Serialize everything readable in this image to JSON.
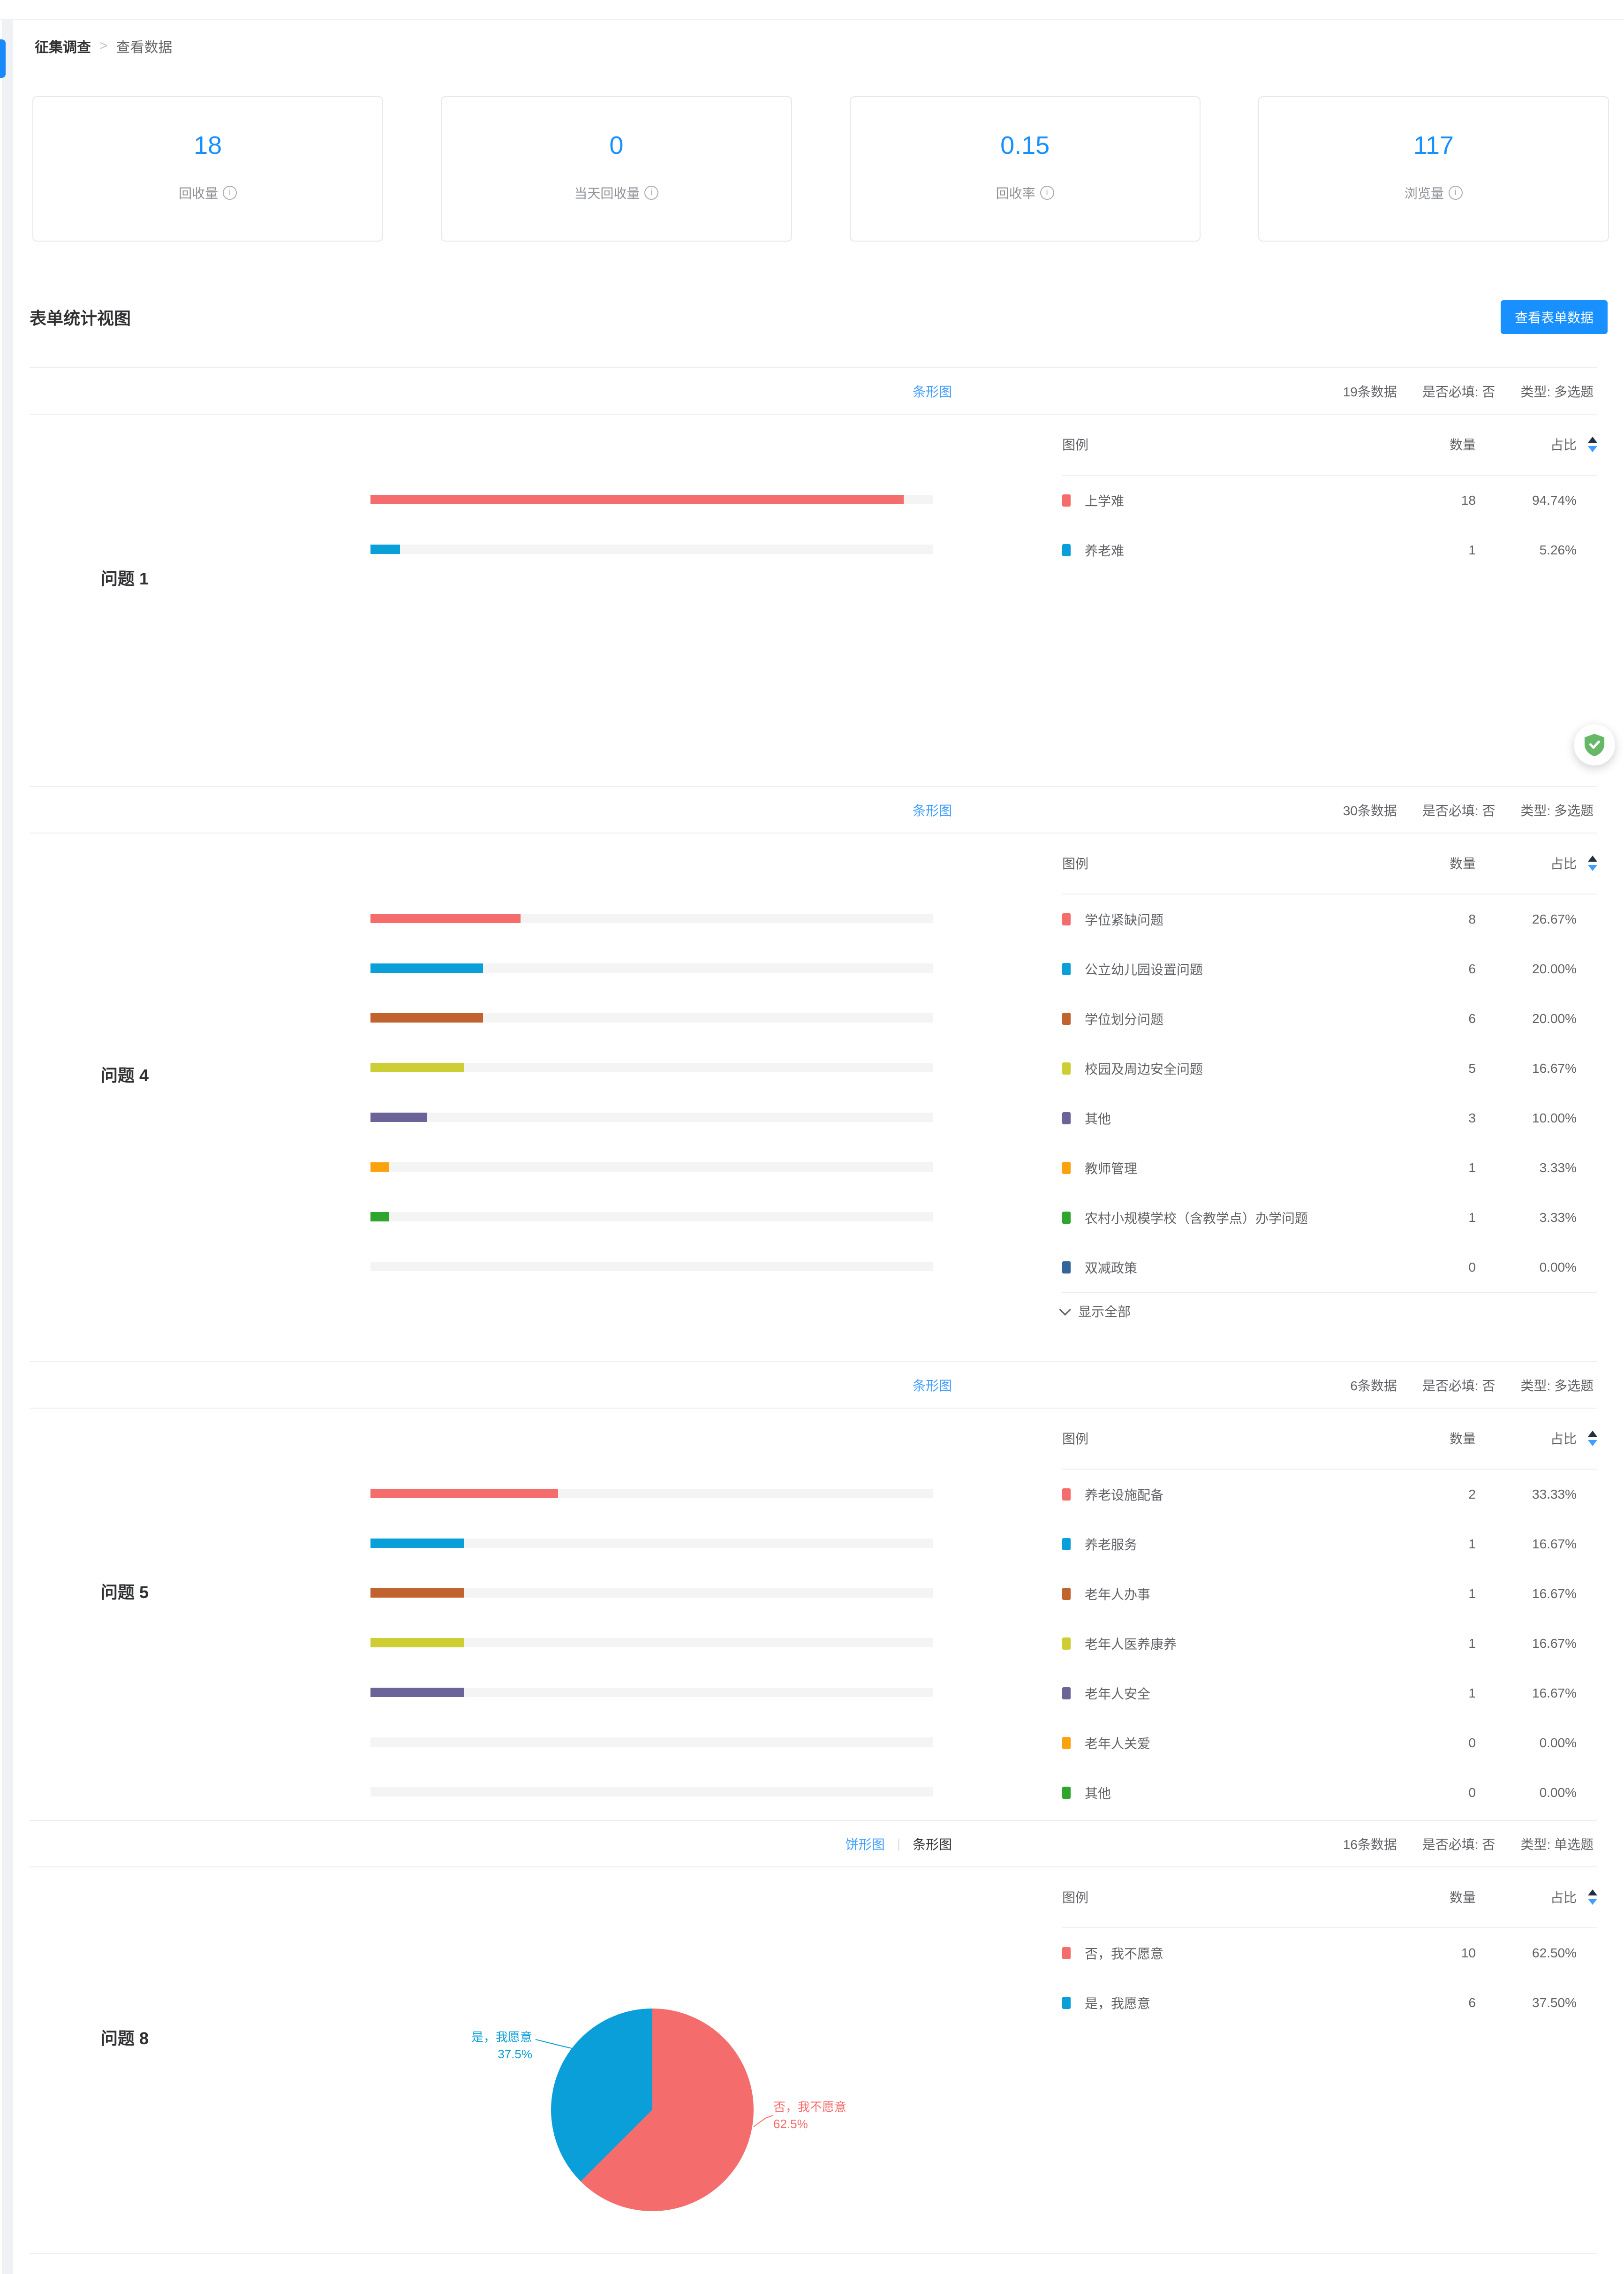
{
  "colors": {
    "primary": "#1890ff",
    "link": "#409eff",
    "divider": "#ebeef5",
    "track": "#f4f4f5"
  },
  "breadcrumb": {
    "root": "征集调查",
    "separator": ">",
    "current": "查看数据"
  },
  "stats": [
    {
      "value": "18",
      "label": "回收量"
    },
    {
      "value": "0",
      "label": "当天回收量"
    },
    {
      "value": "0.15",
      "label": "回收率"
    },
    {
      "value": "117",
      "label": "浏览量"
    }
  ],
  "form_section": {
    "title": "表单统计视图",
    "button": "查看表单数据"
  },
  "table": {
    "legend": "图例",
    "count": "数量",
    "ratio": "占比"
  },
  "questions": [
    {
      "title": "问题 1",
      "meta_count": "19条数据",
      "meta_required": "是否必填: 否",
      "meta_type": "类型: 多选题",
      "links": [
        {
          "label": "条形图",
          "active": true
        }
      ],
      "chart_type": "bar",
      "rows": [
        {
          "label": "上学难",
          "count": "18",
          "pct": "94.74%",
          "pct_num": 94.74,
          "color": "#f56c6c"
        },
        {
          "label": "养老难",
          "count": "1",
          "pct": "5.26%",
          "pct_num": 5.26,
          "color": "#0a9fd8"
        }
      ]
    },
    {
      "title": "问题 4",
      "meta_count": "30条数据",
      "meta_required": "是否必填: 否",
      "meta_type": "类型: 多选题",
      "links": [
        {
          "label": "条形图",
          "active": true
        }
      ],
      "chart_type": "bar",
      "show_all": "显示全部",
      "rows": [
        {
          "label": "学位紧缺问题",
          "count": "8",
          "pct": "26.67%",
          "pct_num": 26.67,
          "color": "#f56c6c"
        },
        {
          "label": "公立幼儿园设置问题",
          "count": "6",
          "pct": "20.00%",
          "pct_num": 20.0,
          "color": "#0a9fd8"
        },
        {
          "label": "学位划分问题",
          "count": "6",
          "pct": "20.00%",
          "pct_num": 20.0,
          "color": "#c1632f"
        },
        {
          "label": "校园及周边安全问题",
          "count": "5",
          "pct": "16.67%",
          "pct_num": 16.67,
          "color": "#ccce33"
        },
        {
          "label": "其他",
          "count": "3",
          "pct": "10.00%",
          "pct_num": 10.0,
          "color": "#6a6499"
        },
        {
          "label": "教师管理",
          "count": "1",
          "pct": "3.33%",
          "pct_num": 3.33,
          "color": "#fca20c"
        },
        {
          "label": "农村小规模学校（含教学点）办学问题",
          "count": "1",
          "pct": "3.33%",
          "pct_num": 3.33,
          "color": "#2ea52c"
        },
        {
          "label": "双减政策",
          "count": "0",
          "pct": "0.00%",
          "pct_num": 0,
          "color": "#32669b"
        }
      ]
    },
    {
      "title": "问题 5",
      "meta_count": "6条数据",
      "meta_required": "是否必填: 否",
      "meta_type": "类型: 多选题",
      "links": [
        {
          "label": "条形图",
          "active": true
        }
      ],
      "chart_type": "bar",
      "rows": [
        {
          "label": "养老设施配备",
          "count": "2",
          "pct": "33.33%",
          "pct_num": 33.33,
          "color": "#f56c6c"
        },
        {
          "label": "养老服务",
          "count": "1",
          "pct": "16.67%",
          "pct_num": 16.67,
          "color": "#0a9fd8"
        },
        {
          "label": "老年人办事",
          "count": "1",
          "pct": "16.67%",
          "pct_num": 16.67,
          "color": "#c1632f"
        },
        {
          "label": "老年人医养康养",
          "count": "1",
          "pct": "16.67%",
          "pct_num": 16.67,
          "color": "#ccce33"
        },
        {
          "label": "老年人安全",
          "count": "1",
          "pct": "16.67%",
          "pct_num": 16.67,
          "color": "#6a6499"
        },
        {
          "label": "老年人关爱",
          "count": "0",
          "pct": "0.00%",
          "pct_num": 0,
          "color": "#fca20c"
        },
        {
          "label": "其他",
          "count": "0",
          "pct": "0.00%",
          "pct_num": 0,
          "color": "#2ea52c"
        }
      ]
    },
    {
      "title": "问题 8",
      "meta_count": "16条数据",
      "meta_required": "是否必填: 否",
      "meta_type": "类型: 单选题",
      "links": [
        {
          "label": "饼形图",
          "active": true
        },
        {
          "label": "条形图",
          "active": false
        }
      ],
      "link_separator": "|",
      "chart_type": "pie",
      "pie": {
        "slices": [
          {
            "label": "否，我不愿意",
            "pct": 62.5,
            "pct_label": "62.5%",
            "color": "#f56c6c"
          },
          {
            "label": "是，我愿意",
            "pct": 37.5,
            "pct_label": "37.5%",
            "color": "#0a9fd8"
          }
        ]
      },
      "rows": [
        {
          "label": "否，我不愿意",
          "count": "10",
          "pct": "62.50%",
          "pct_num": 62.5,
          "color": "#f56c6c"
        },
        {
          "label": "是，我愿意",
          "count": "6",
          "pct": "37.50%",
          "pct_num": 37.5,
          "color": "#0a9fd8"
        }
      ]
    }
  ],
  "floating_badge": {
    "icon": "shield-check-icon"
  }
}
